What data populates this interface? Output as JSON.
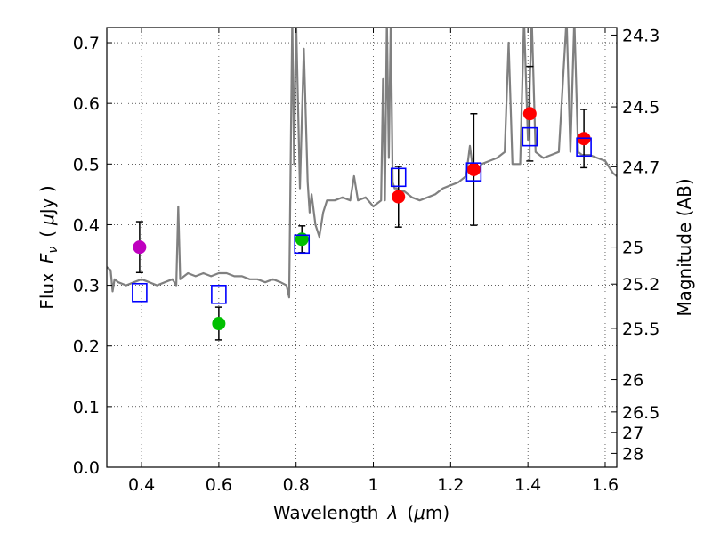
{
  "chart_data": {
    "type": "scatter",
    "xlabel_main": "Wavelength",
    "xlabel_symbol": "λ",
    "xlabel_unit_open": "(",
    "xlabel_unit_mu": "μ",
    "xlabel_unit_rest": "m)",
    "ylabel_main": "Flux",
    "ylabel_symbol": "F",
    "ylabel_subscript": "ν",
    "ylabel_unit_open": "(",
    "ylabel_unit_mu": "μ",
    "ylabel_unit_rest": "Jy )",
    "y2label": "Magnitude (AB)",
    "xlim": [
      0.31,
      1.63
    ],
    "ylim": [
      0.0,
      0.725
    ],
    "grid": true,
    "xticks": [
      {
        "v": 0.4,
        "label": "0.4"
      },
      {
        "v": 0.6,
        "label": "0.6"
      },
      {
        "v": 0.8,
        "label": "0.8"
      },
      {
        "v": 1.0,
        "label": "1"
      },
      {
        "v": 1.2,
        "label": "1.2"
      },
      {
        "v": 1.4,
        "label": "1.4"
      },
      {
        "v": 1.6,
        "label": "1.6"
      }
    ],
    "yticks": [
      {
        "v": 0.0,
        "label": "0.0"
      },
      {
        "v": 0.1,
        "label": "0.1"
      },
      {
        "v": 0.2,
        "label": "0.2"
      },
      {
        "v": 0.3,
        "label": "0.3"
      },
      {
        "v": 0.4,
        "label": "0.4"
      },
      {
        "v": 0.5,
        "label": "0.5"
      },
      {
        "v": 0.6,
        "label": "0.6"
      },
      {
        "v": 0.7,
        "label": "0.7"
      }
    ],
    "mag_ticks": [
      {
        "flux": 0.7126,
        "label": "24.3"
      },
      {
        "flux": 0.5943,
        "label": "24.5"
      },
      {
        "flux": 0.4955,
        "label": "24.7"
      },
      {
        "flux": 0.3631,
        "label": "25"
      },
      {
        "flux": 0.302,
        "label": "25.2"
      },
      {
        "flux": 0.2291,
        "label": "25.5"
      },
      {
        "flux": 0.1445,
        "label": "26"
      },
      {
        "flux": 0.0912,
        "label": "26.5"
      },
      {
        "flux": 0.0575,
        "label": "27"
      },
      {
        "flux": 0.0229,
        "label": "28"
      }
    ],
    "sed_model": {
      "name": "SED template",
      "color": "#808080",
      "x": [
        0.31,
        0.32,
        0.325,
        0.33,
        0.34,
        0.36,
        0.38,
        0.4,
        0.42,
        0.44,
        0.46,
        0.48,
        0.49,
        0.495,
        0.5,
        0.52,
        0.54,
        0.56,
        0.58,
        0.6,
        0.62,
        0.64,
        0.66,
        0.68,
        0.7,
        0.72,
        0.74,
        0.76,
        0.775,
        0.782,
        0.79,
        0.795,
        0.8,
        0.81,
        0.82,
        0.83,
        0.835,
        0.84,
        0.85,
        0.86,
        0.87,
        0.88,
        0.9,
        0.92,
        0.94,
        0.95,
        0.96,
        0.98,
        1.0,
        1.02,
        1.025,
        1.03,
        1.035,
        1.04,
        1.045,
        1.05,
        1.055,
        1.06,
        1.07,
        1.08,
        1.1,
        1.12,
        1.14,
        1.16,
        1.18,
        1.2,
        1.22,
        1.24,
        1.25,
        1.26,
        1.27,
        1.28,
        1.3,
        1.32,
        1.34,
        1.35,
        1.36,
        1.38,
        1.39,
        1.4,
        1.41,
        1.42,
        1.44,
        1.46,
        1.48,
        1.5,
        1.51,
        1.52,
        1.53,
        1.54,
        1.56,
        1.58,
        1.6,
        1.62,
        1.63
      ],
      "y": [
        0.33,
        0.325,
        0.29,
        0.31,
        0.305,
        0.3,
        0.305,
        0.31,
        0.305,
        0.3,
        0.305,
        0.31,
        0.3,
        0.43,
        0.31,
        0.32,
        0.315,
        0.32,
        0.315,
        0.32,
        0.32,
        0.315,
        0.315,
        0.31,
        0.31,
        0.305,
        0.31,
        0.305,
        0.3,
        0.28,
        0.74,
        0.5,
        0.74,
        0.46,
        0.69,
        0.47,
        0.42,
        0.45,
        0.4,
        0.38,
        0.42,
        0.44,
        0.44,
        0.445,
        0.44,
        0.48,
        0.44,
        0.445,
        0.43,
        0.44,
        0.64,
        0.44,
        0.74,
        0.51,
        0.74,
        0.47,
        0.46,
        0.46,
        0.455,
        0.455,
        0.445,
        0.44,
        0.445,
        0.45,
        0.46,
        0.465,
        0.47,
        0.48,
        0.53,
        0.48,
        0.49,
        0.5,
        0.505,
        0.51,
        0.52,
        0.7,
        0.5,
        0.5,
        0.74,
        0.54,
        0.74,
        0.52,
        0.51,
        0.515,
        0.52,
        0.74,
        0.52,
        0.74,
        0.52,
        0.515,
        0.515,
        0.51,
        0.505,
        0.485,
        0.48
      ]
    },
    "series": [
      {
        "name": "photometry (purple)",
        "color": "#bf00bf",
        "points": [
          {
            "x": 0.395,
            "y": 0.363,
            "err": 0.042
          }
        ]
      },
      {
        "name": "photometry (green)",
        "color": "#00c000",
        "points": [
          {
            "x": 0.6,
            "y": 0.237,
            "err": 0.027
          },
          {
            "x": 0.815,
            "y": 0.376,
            "err": 0.022
          }
        ]
      },
      {
        "name": "photometry (red)",
        "color": "#ff0000",
        "points": [
          {
            "x": 1.065,
            "y": 0.446,
            "err": 0.05
          },
          {
            "x": 1.26,
            "y": 0.491,
            "err": 0.092
          },
          {
            "x": 1.405,
            "y": 0.583,
            "err": 0.078
          },
          {
            "x": 1.545,
            "y": 0.542,
            "err": 0.048
          }
        ]
      },
      {
        "name": "model fluxes",
        "color": "#0000ff",
        "marker": "open-square",
        "points": [
          {
            "x": 0.395,
            "y": 0.288
          },
          {
            "x": 0.6,
            "y": 0.285
          },
          {
            "x": 0.815,
            "y": 0.368
          },
          {
            "x": 1.065,
            "y": 0.478
          },
          {
            "x": 1.26,
            "y": 0.487
          },
          {
            "x": 1.405,
            "y": 0.545
          },
          {
            "x": 1.545,
            "y": 0.528
          }
        ]
      }
    ]
  }
}
